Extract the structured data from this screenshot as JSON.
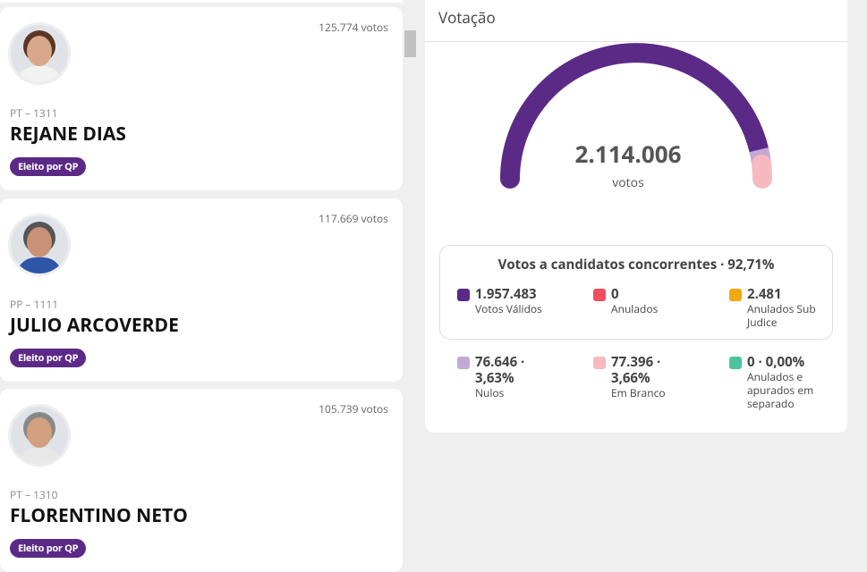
{
  "cards": [
    {
      "votes": "125.774 votos",
      "party": "PT – 1311",
      "name": "REJANE DIAS",
      "badge": "Eleito por QP"
    },
    {
      "votes": "117.669 votos",
      "party": "PP – 1111",
      "name": "JULIO ARCOVERDE",
      "badge": "Eleito por QP"
    },
    {
      "votes": "105.739 votos",
      "party": "PT – 1310",
      "name": "FLORENTINO NETO",
      "badge": "Eleito por QP"
    }
  ],
  "panel": {
    "title": "Votação",
    "total": "2.114.006",
    "total_unit": "votos",
    "box_title": "Votos a candidatos concorrentes · 92,71%",
    "box_items": [
      {
        "value": "1.957.483",
        "label": "Votos Válidos",
        "color": "#5b2a86"
      },
      {
        "value": "0",
        "label": "Anulados",
        "color": "#ef4e5e"
      },
      {
        "value": "2.481",
        "label": "Anulados Sub Judice",
        "color": "#f5a70f"
      }
    ],
    "other_items": [
      {
        "value": "76.646 · 3,63%",
        "label": "Nulos",
        "color": "#c3a9d7"
      },
      {
        "value": "77.396 · 3,66%",
        "label": "Em Branco",
        "color": "#f7b8c0"
      },
      {
        "value": "0 · 0,00%",
        "label": "Anulados e apurados em separado",
        "color": "#4cc3a0"
      }
    ]
  }
}
